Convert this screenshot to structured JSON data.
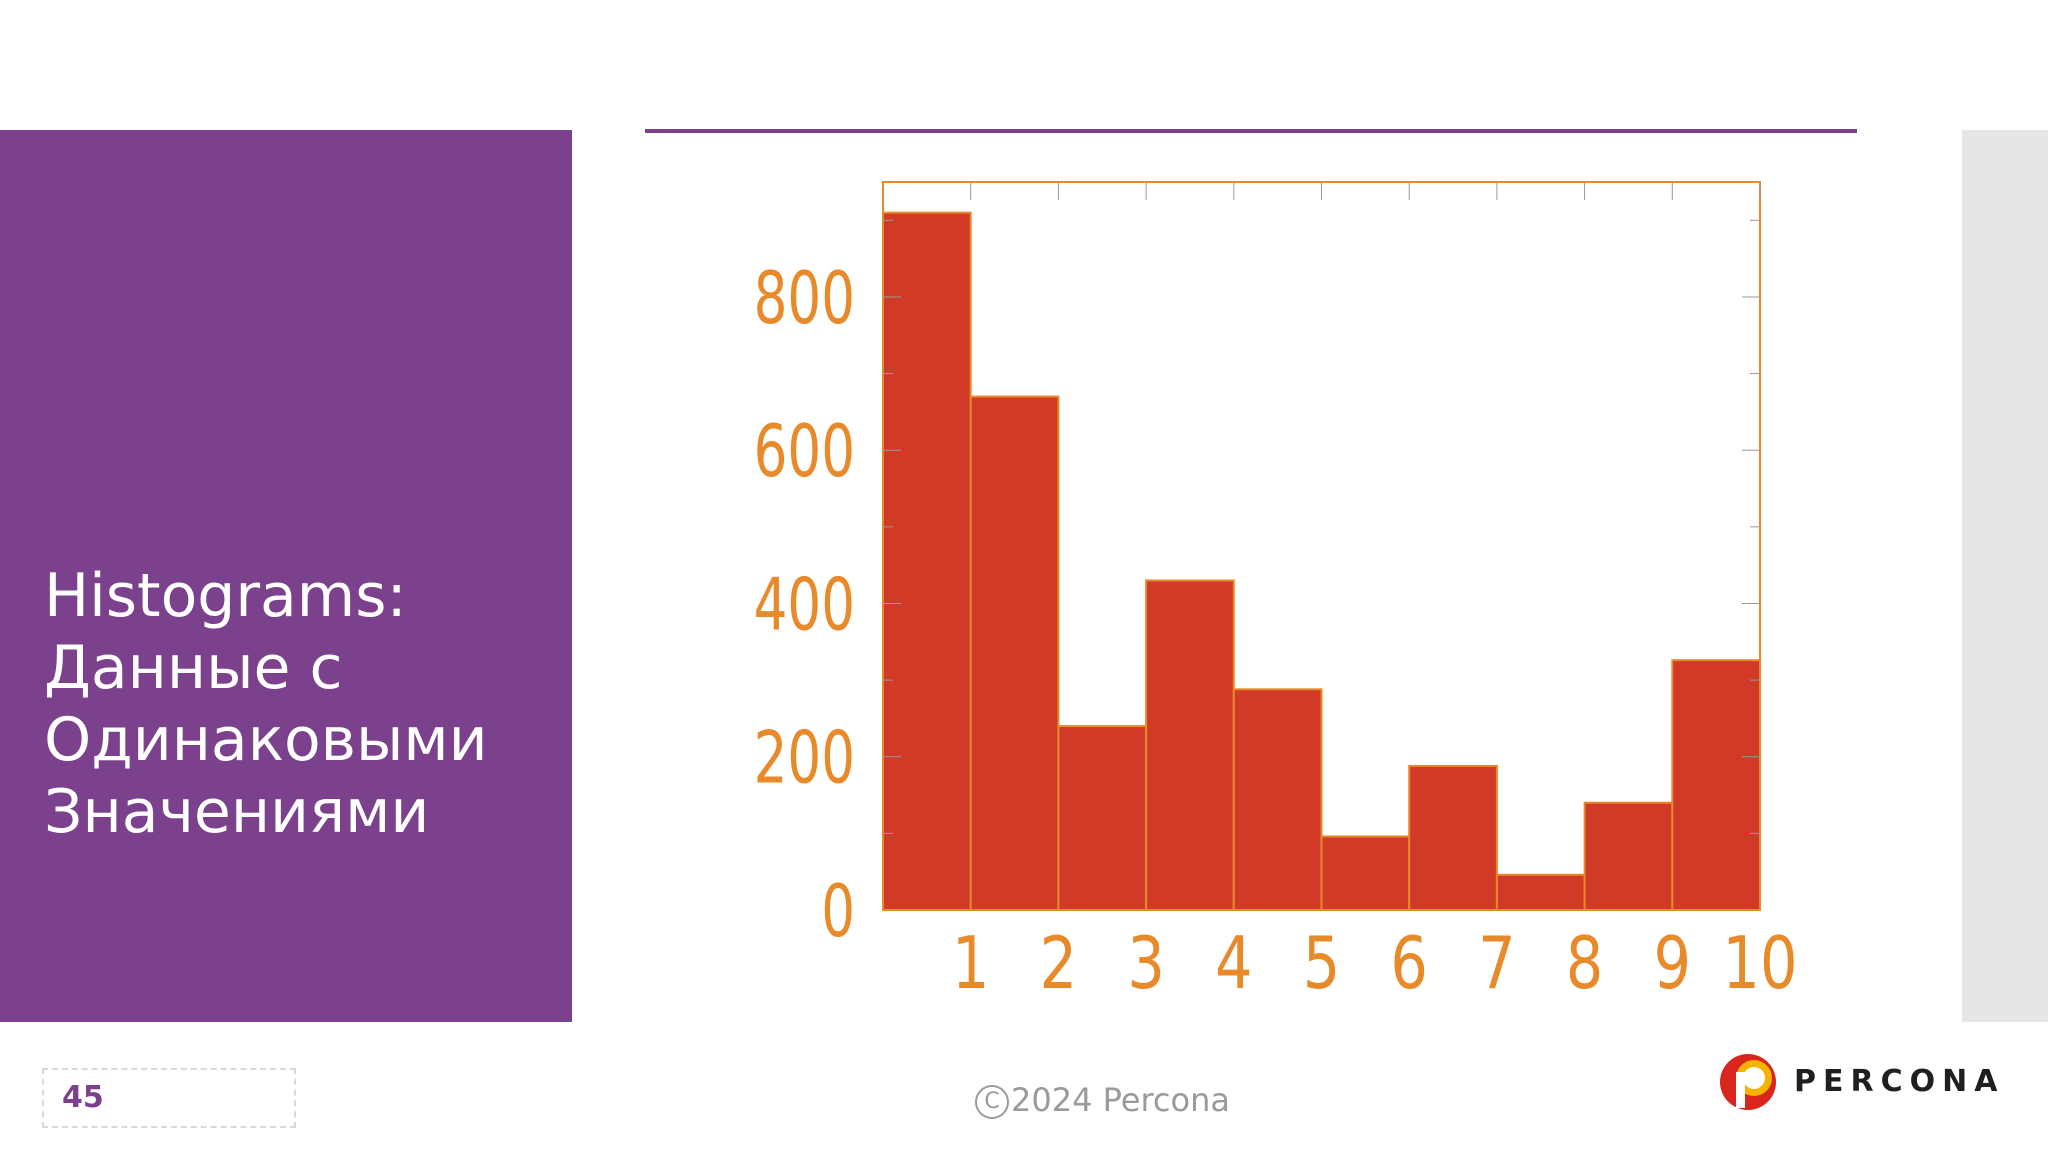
{
  "slide": {
    "title_lines": [
      "Histograms:",
      "Данные с",
      "Одинаковыми",
      "Значениями"
    ],
    "page_number": "45",
    "copyright_symbol": "C",
    "copyright_text": "2024 Percona",
    "logo_text": "PERCONA"
  },
  "colors": {
    "accent_purple": "#7b418c",
    "bar_fill": "#d13a27",
    "axis_orange": "#e8892a",
    "strip_gray": "#e6e6e6",
    "logo_red": "#d9251c",
    "logo_yellow": "#f4b400"
  },
  "chart_data": {
    "type": "bar",
    "categories": [
      "0-1",
      "1-2",
      "2-3",
      "3-4",
      "4-5",
      "5-6",
      "6-7",
      "7-8",
      "8-9",
      "9-10"
    ],
    "values": [
      910,
      670,
      240,
      430,
      288,
      96,
      188,
      46,
      140,
      326
    ],
    "xlim": [
      0,
      10
    ],
    "ylim": [
      0,
      950
    ],
    "xticks": [
      1,
      2,
      3,
      4,
      5,
      6,
      7,
      8,
      9,
      10
    ],
    "xtick_labels": [
      "1",
      "2",
      "3",
      "4",
      "5",
      "6",
      "7",
      "8",
      "9",
      "10"
    ],
    "yticks": [
      0,
      200,
      400,
      600,
      800
    ],
    "ytick_labels": [
      "0",
      "200",
      "400",
      "600",
      "800"
    ],
    "title": "",
    "xlabel": "",
    "ylabel": ""
  }
}
